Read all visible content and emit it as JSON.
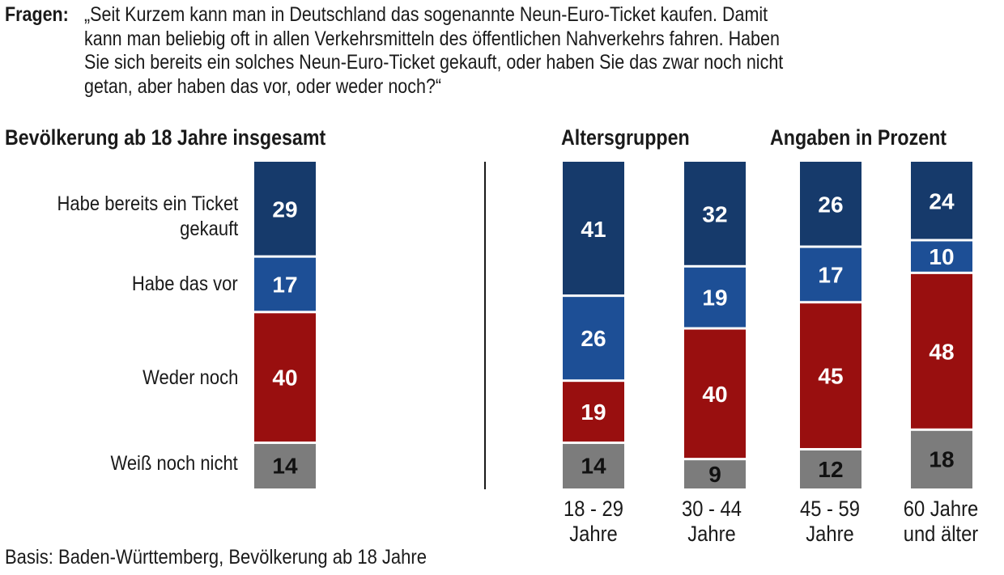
{
  "question": {
    "label": "Fragen:",
    "lines": [
      "„Seit Kurzem kann man in Deutschland das sogenannte Neun-Euro-Ticket kaufen. Damit",
      "kann man beliebig oft in allen Verkehrsmitteln des öffentlichen Nahverkehrs fahren. Haben",
      "Sie sich bereits ein solches Neun-Euro-Ticket gekauft, oder haben Sie das zwar noch nicht",
      "getan, aber haben das vor, oder weder noch?“"
    ]
  },
  "headers": {
    "total": "Bevölkerung ab 18 Jahre insgesamt",
    "age_groups": "Altersgruppen",
    "unit": "Angaben in Prozent"
  },
  "footer": "Basis: Baden-Württemberg, Bevölkerung ab 18 Jahre",
  "colors": {
    "bought": "#163a6b",
    "planned": "#1d4f96",
    "neither": "#990f0f",
    "unsure": "#7c7c7c"
  },
  "chart_data": {
    "type": "bar",
    "stacked": true,
    "categories": [
      "Habe bereits ein Ticket gekauft",
      "Habe das vor",
      "Weder noch",
      "Weiß noch nicht"
    ],
    "category_lines": [
      [
        "Habe bereits ein Ticket",
        "gekauft"
      ],
      [
        "Habe das vor"
      ],
      [
        "Weder noch"
      ],
      [
        "Weiß noch nicht"
      ]
    ],
    "groups": [
      {
        "label_lines": [],
        "values": [
          29,
          17,
          40,
          14
        ]
      },
      {
        "label_lines": [
          "18 - 29",
          "Jahre"
        ],
        "values": [
          41,
          26,
          19,
          14
        ]
      },
      {
        "label_lines": [
          "30 - 44",
          "Jahre"
        ],
        "values": [
          32,
          19,
          40,
          9
        ]
      },
      {
        "label_lines": [
          "45 - 59",
          "Jahre"
        ],
        "values": [
          26,
          17,
          45,
          12
        ]
      },
      {
        "label_lines": [
          "60 Jahre",
          "und älter"
        ],
        "values": [
          24,
          10,
          48,
          18
        ]
      }
    ]
  }
}
